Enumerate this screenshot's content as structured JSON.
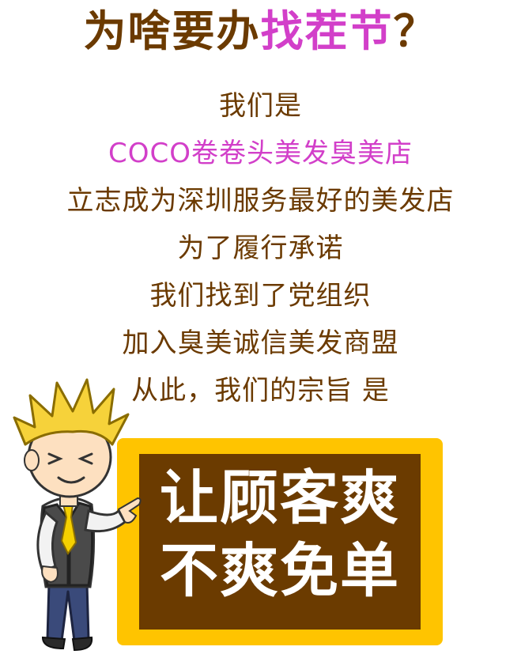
{
  "headline": {
    "part1": "为啥要办",
    "part2": "找茬节",
    "part3": "？"
  },
  "lines": [
    "我们是",
    "COCO卷卷头美发臭美店",
    "立志成为深圳服务最好的美发店",
    "为了履行承诺",
    "我们找到了党组织",
    "加入臭美诚信美发商盟",
    "从此，我们的宗旨 是"
  ],
  "board": {
    "line1": "让顾客爽",
    "line2": "不爽免单"
  },
  "colors": {
    "brown": "#6b3a00",
    "pink": "#d23fc9",
    "frame": "#ffc400",
    "board": "#6b3b00"
  },
  "icons": {
    "character": "cartoon-man-pointing-icon"
  }
}
